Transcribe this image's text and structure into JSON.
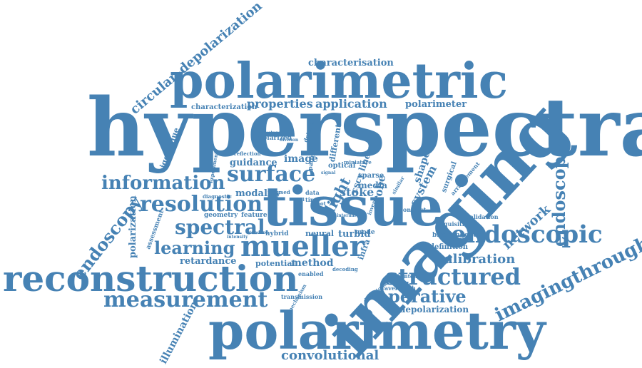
{
  "color": "#4682b4",
  "words": [
    "hyperspectral",
    "imaging",
    "tissue",
    "polarimetric",
    "polarimetry",
    "reconstruction",
    "mueller",
    "endoscopic",
    "structured",
    "surface",
    "resolution",
    "spectral",
    "measurement",
    "information",
    "learning",
    "operative",
    "imagingthrough",
    "endoscopy",
    "endoscope",
    "network",
    "calibration",
    "circular–depolarization",
    "convolutional",
    "characterisation",
    "properties",
    "application",
    "polarimeter",
    "illumination",
    "retardance",
    "depolarization",
    "polarization",
    "stoke",
    "system",
    "probe",
    "modality",
    "guidance",
    "image",
    "light",
    "eigenvalue",
    "characterization",
    "potential",
    "method",
    "shape",
    "optical",
    "sparse",
    "media",
    "turbid",
    "neural",
    "geometry",
    "feature",
    "definition",
    "birefringence",
    "acquisition",
    "validation",
    "wavelength",
    "transmission",
    "assessment",
    "different",
    "pattern",
    "detection",
    "polarized",
    "reflection",
    "experiment",
    "diagnostic",
    "cscy linear",
    "miniature",
    "surgical",
    "arrangement",
    "contrast",
    "phantom",
    "directional",
    "enabled",
    "decoding",
    "intensity",
    "hybrid",
    "standard",
    "mechanism",
    "infra",
    "mode",
    "spot",
    "data",
    "time",
    "based",
    "similar",
    "dual",
    "signal",
    "inverse",
    "internal",
    "structure",
    "division"
  ]
}
